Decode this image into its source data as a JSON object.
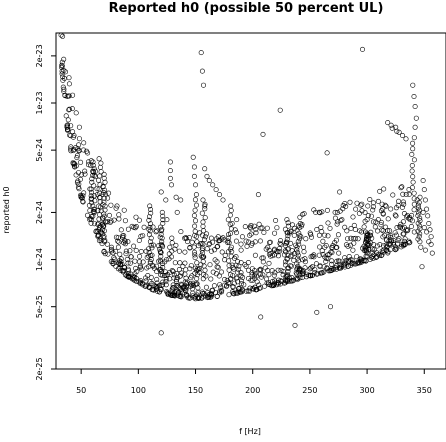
{
  "chart_data": {
    "type": "scatter",
    "title": "Reported h0 (possible 50 percent UL)",
    "xlabel": "f [Hz]",
    "ylabel": "reported h0",
    "xlim": [
      28,
      369
    ],
    "ylim": [
      2e-25,
      2.8e-23
    ],
    "log_y": true,
    "grid": false,
    "x_ticks": [
      50,
      100,
      150,
      200,
      250,
      300,
      350
    ],
    "y_ticks": [
      {
        "value": 2e-25,
        "label": "2e-25"
      },
      {
        "value": 5e-25,
        "label": "5e-25"
      },
      {
        "value": 1e-24,
        "label": "1e-24"
      },
      {
        "value": 2e-24,
        "label": "2e-24"
      },
      {
        "value": 5e-24,
        "label": "5e-24"
      },
      {
        "value": 1e-23,
        "label": "1e-23"
      },
      {
        "value": 2e-23,
        "label": "2e-23"
      }
    ],
    "point_color": "#000000",
    "floor_curve": [
      [
        32,
        2.3e-23
      ],
      [
        34,
        1.5e-23
      ],
      [
        36,
        1.05e-23
      ],
      [
        38,
        7.5e-24
      ],
      [
        40,
        6e-24
      ],
      [
        43,
        4.6e-24
      ],
      [
        46,
        3.6e-24
      ],
      [
        50,
        2.8e-24
      ],
      [
        55,
        2.2e-24
      ],
      [
        60,
        1.8e-24
      ],
      [
        65,
        1.5e-24
      ],
      [
        70,
        1.25e-24
      ],
      [
        80,
        1e-24
      ],
      [
        90,
        8.8e-25
      ],
      [
        100,
        8e-25
      ],
      [
        110,
        7.3e-25
      ],
      [
        120,
        6.9e-25
      ],
      [
        130,
        6.6e-25
      ],
      [
        140,
        6.4e-25
      ],
      [
        150,
        6.3e-25
      ],
      [
        160,
        6.4e-25
      ],
      [
        170,
        6.5e-25
      ],
      [
        180,
        6.7e-25
      ],
      [
        190,
        6.9e-25
      ],
      [
        200,
        7.1e-25
      ],
      [
        210,
        7.4e-25
      ],
      [
        220,
        7.7e-25
      ],
      [
        230,
        8e-25
      ],
      [
        240,
        8.4e-25
      ],
      [
        250,
        8.8e-25
      ],
      [
        260,
        9.2e-25
      ],
      [
        270,
        9.6e-25
      ],
      [
        280,
        1e-24
      ],
      [
        290,
        1.05e-24
      ],
      [
        300,
        1.1e-24
      ],
      [
        310,
        1.17e-24
      ],
      [
        320,
        1.25e-24
      ],
      [
        330,
        1.35e-24
      ],
      [
        338,
        1.45e-24
      ]
    ],
    "excursions": [
      {
        "x": 340,
        "y_from": 1.5e-24,
        "y_to": 6e-24
      },
      {
        "x": 345,
        "y_from": 1.3e-24,
        "y_to": 2.5e-24
      },
      {
        "x": 60,
        "y_from": 1.8e-24,
        "y_to": 4.2e-24
      },
      {
        "x": 66,
        "y_from": 1.5e-24,
        "y_to": 4.4e-24
      },
      {
        "x": 70,
        "y_from": 1.3e-24,
        "y_to": 3.5e-24
      },
      {
        "x": 110,
        "y_from": 9e-25,
        "y_to": 2.2e-24
      },
      {
        "x": 120,
        "y_from": 8e-25,
        "y_to": 2e-24
      },
      {
        "x": 150,
        "y_from": 7e-25,
        "y_to": 2.6e-24
      },
      {
        "x": 157,
        "y_from": 8e-25,
        "y_to": 2.4e-24
      },
      {
        "x": 180,
        "y_from": 7e-25,
        "y_to": 2.2e-24
      },
      {
        "x": 230,
        "y_from": 8e-25,
        "y_to": 1.8e-24
      },
      {
        "x": 240,
        "y_from": 8e-25,
        "y_to": 1.6e-24
      },
      {
        "x": 300,
        "y_from": 1.1e-24,
        "y_to": 1.5e-24
      }
    ],
    "points": [
      [
        155,
        2.1e-23
      ],
      [
        156,
        1.6e-23
      ],
      [
        157,
        1.3e-23
      ],
      [
        296,
        2.2e-23
      ],
      [
        128,
        4.2e-24
      ],
      [
        128,
        3.7e-24
      ],
      [
        128,
        3.3e-24
      ],
      [
        129,
        3e-24
      ],
      [
        148,
        4.5e-24
      ],
      [
        149,
        3.9e-24
      ],
      [
        149,
        3.4e-24
      ],
      [
        150,
        3e-24
      ],
      [
        158,
        3.8e-24
      ],
      [
        160,
        3.4e-24
      ],
      [
        162,
        3.2e-24
      ],
      [
        165,
        3e-24
      ],
      [
        168,
        2.8e-24
      ],
      [
        171,
        2.6e-24
      ],
      [
        174,
        2.4e-24
      ],
      [
        120,
        2.7e-24
      ],
      [
        124,
        2.4e-24
      ],
      [
        133,
        2.5e-24
      ],
      [
        137,
        2.4e-24
      ],
      [
        224,
        9e-24
      ],
      [
        209,
        6.3e-24
      ],
      [
        265,
        4.8e-24
      ],
      [
        276,
        2.7e-24
      ],
      [
        278,
        1.8e-24
      ],
      [
        255,
        2e-24
      ],
      [
        272,
        2e-24
      ],
      [
        290,
        2.1e-24
      ],
      [
        300,
        1.8e-24
      ],
      [
        205,
        2.6e-24
      ],
      [
        158,
        2.2e-24
      ],
      [
        134,
        2e-24
      ],
      [
        125,
        1.8e-24
      ],
      [
        182,
        1.7e-24
      ],
      [
        186,
        1.8e-24
      ],
      [
        242,
        1.4e-24
      ],
      [
        120,
        3.4e-25
      ],
      [
        207,
        4.3e-25
      ],
      [
        237,
        3.8e-25
      ],
      [
        256,
        4.6e-25
      ],
      [
        268,
        5e-25
      ],
      [
        325,
        7e-24
      ],
      [
        328,
        6.5e-24
      ],
      [
        331,
        6.2e-24
      ],
      [
        334,
        5.9e-24
      ],
      [
        321,
        7.2e-24
      ],
      [
        318,
        7.5e-24
      ],
      [
        322,
        6.9e-24
      ],
      [
        326,
        6.6e-24
      ],
      [
        340,
        1.3e-23
      ],
      [
        341,
        1.1e-23
      ],
      [
        342,
        9.5e-24
      ],
      [
        343,
        8e-24
      ],
      [
        342,
        7e-24
      ],
      [
        349,
        3.2e-24
      ],
      [
        350,
        2.8e-24
      ],
      [
        351,
        2.4e-24
      ],
      [
        352,
        2.1e-24
      ],
      [
        353,
        1.9e-24
      ],
      [
        354,
        1.7e-24
      ],
      [
        355,
        1.55e-24
      ],
      [
        356,
        1.4e-24
      ],
      [
        350,
        1.6e-24
      ],
      [
        352,
        1.5e-24
      ],
      [
        354,
        1.3e-24
      ],
      [
        347,
        1.2e-24
      ],
      [
        351,
        1.15e-24
      ],
      [
        356,
        1.25e-24
      ],
      [
        348,
        9e-25
      ],
      [
        357,
        1.1e-24
      ],
      [
        349,
        2e-24
      ]
    ]
  }
}
